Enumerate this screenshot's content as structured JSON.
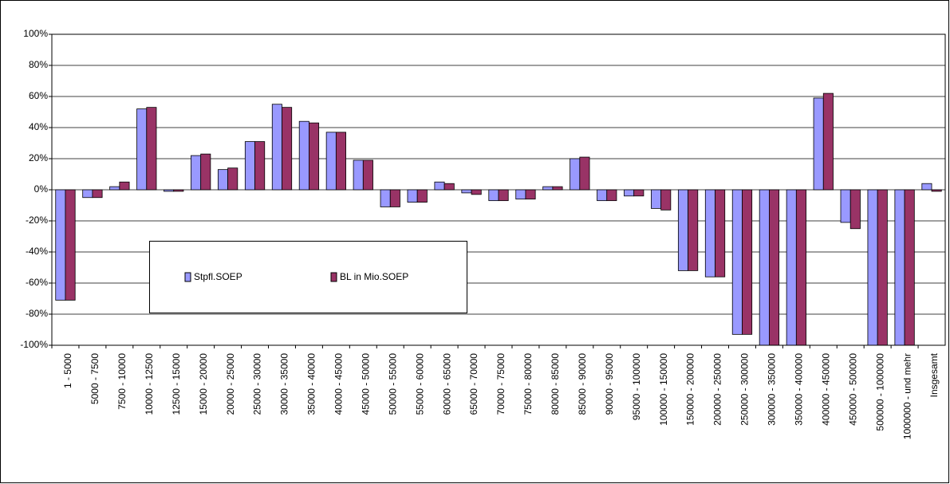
{
  "chart_data": {
    "type": "bar",
    "categories": [
      "1 - 5000",
      "5000 - 7500",
      "7500 - 10000",
      "10000 - 12500",
      "12500 - 15000",
      "15000 - 20000",
      "20000 - 25000",
      "25000 - 30000",
      "30000 - 35000",
      "35000 - 40000",
      "40000 - 45000",
      "45000 - 50000",
      "50000 - 55000",
      "55000 - 60000",
      "60000 - 65000",
      "65000 - 70000",
      "70000 - 75000",
      "75000 - 80000",
      "80000 - 85000",
      "85000 - 90000",
      "90000 - 95000",
      "95000 - 100000",
      "100000 - 150000",
      "150000 - 200000",
      "200000 - 250000",
      "250000 - 300000",
      "300000 - 350000",
      "350000 - 400000",
      "400000 - 450000",
      "450000 - 500000",
      "500000 - 1000000",
      "1000000 - und mehr",
      "Insgesamt"
    ],
    "series": [
      {
        "name": "Stpfl.SOEP",
        "color": "#9999ff",
        "values": [
          -71,
          -5,
          2,
          52,
          -1,
          22,
          13,
          31,
          55,
          44,
          37,
          19,
          -11,
          -8,
          5,
          -2,
          -7,
          -6,
          2,
          20,
          -7,
          -4,
          -12,
          -52,
          -56,
          -93,
          -100,
          -100,
          59,
          -21,
          -100,
          -100,
          4
        ]
      },
      {
        "name": "BL in Mio.SOEP",
        "color": "#993366",
        "values": [
          -71,
          -5,
          5,
          53,
          -1,
          23,
          14,
          31,
          53,
          43,
          37,
          19,
          -11,
          -8,
          4,
          -3,
          -7,
          -6,
          2,
          21,
          -7,
          -4,
          -13,
          -52,
          -56,
          -93,
          -100,
          -100,
          62,
          -25,
          -100,
          -100,
          -1
        ]
      }
    ],
    "ylim": [
      -100,
      100
    ],
    "yticks": [
      {
        "value": -100,
        "label": "-100%"
      },
      {
        "value": -80,
        "label": "-80%"
      },
      {
        "value": -60,
        "label": "-60%"
      },
      {
        "value": -40,
        "label": "-40%"
      },
      {
        "value": -20,
        "label": "-20%"
      },
      {
        "value": 0,
        "label": "0%"
      },
      {
        "value": 20,
        "label": "20%"
      },
      {
        "value": 40,
        "label": "40%"
      },
      {
        "value": 60,
        "label": "60%"
      },
      {
        "value": 80,
        "label": "80%"
      },
      {
        "value": 100,
        "label": "100%"
      }
    ],
    "grid": true
  }
}
